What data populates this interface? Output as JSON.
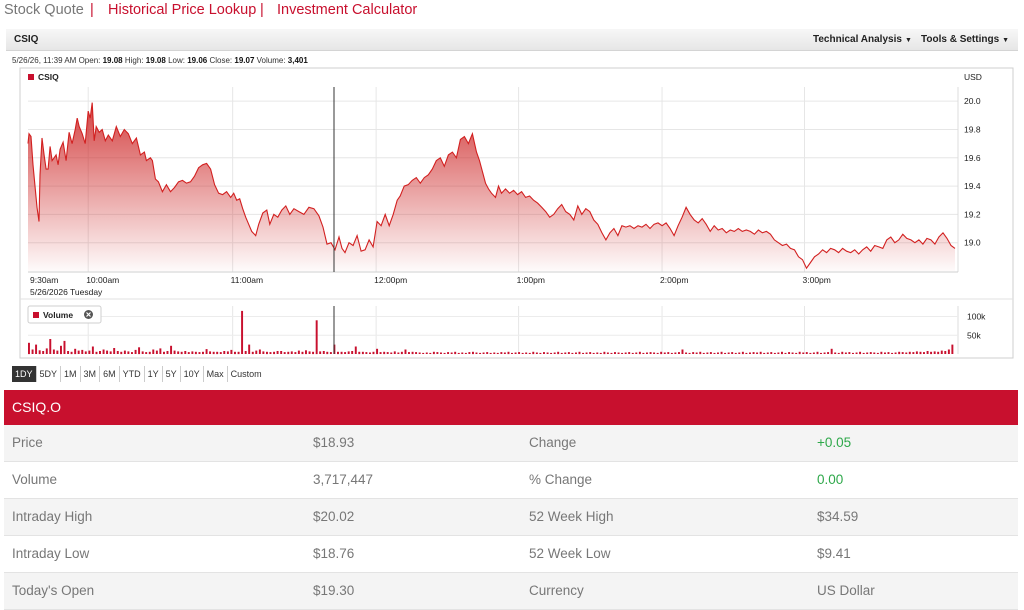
{
  "nav": {
    "stock_quote": "Stock Quote",
    "separator": "|",
    "historical": "Historical Price Lookup",
    "calculator": "Investment Calculator"
  },
  "toolbar": {
    "symbol": "CSIQ",
    "technical_analysis": "Technical Analysis",
    "tools_settings": "Tools & Settings",
    "caret": "▼"
  },
  "info": {
    "datetime": "5/26/26, 11:39 AM",
    "open_label": "Open:",
    "open": "19.08",
    "high_label": "High:",
    "high": "19.08",
    "low_label": "Low:",
    "low": "19.06",
    "close_label": "Close:",
    "close": "19.07",
    "volume_label": "Volume:",
    "volume": "3,401"
  },
  "chart_data": {
    "type": "area",
    "series_name": "CSIQ",
    "currency": "USD",
    "date_label": "5/26/2026 Tuesday",
    "x_labels": [
      "9:30am",
      "10:00am",
      "11:00am",
      "12:00pm",
      "1:00pm",
      "2:00pm",
      "3:00pm"
    ],
    "y_ticks": [
      "20.0",
      "19.8",
      "19.6",
      "19.4",
      "19.2",
      "19.0"
    ],
    "ylim": [
      18.8,
      20.1
    ],
    "price_points": [
      [
        0,
        19.7
      ],
      [
        1,
        19.77
      ],
      [
        3,
        19.75
      ],
      [
        5,
        19.55
      ],
      [
        7,
        19.4
      ],
      [
        9,
        19.25
      ],
      [
        11,
        19.15
      ],
      [
        12,
        19.48
      ],
      [
        14,
        19.74
      ],
      [
        16,
        19.62
      ],
      [
        18,
        19.52
      ],
      [
        20,
        19.52
      ],
      [
        22,
        19.68
      ],
      [
        24,
        19.58
      ],
      [
        26,
        19.6
      ],
      [
        28,
        19.62
      ],
      [
        30,
        19.55
      ],
      [
        32,
        19.66
      ],
      [
        35,
        19.71
      ],
      [
        38,
        19.58
      ],
      [
        41,
        19.78
      ],
      [
        44,
        19.7
      ],
      [
        47,
        19.8
      ],
      [
        49,
        19.88
      ],
      [
        51,
        19.82
      ],
      [
        54,
        19.77
      ],
      [
        57,
        19.7
      ],
      [
        60,
        19.93
      ],
      [
        62,
        19.88
      ],
      [
        64,
        19.99
      ],
      [
        66,
        19.72
      ],
      [
        68,
        19.82
      ],
      [
        71,
        19.78
      ],
      [
        74,
        19.8
      ],
      [
        77,
        19.72
      ],
      [
        80,
        19.76
      ],
      [
        84,
        19.72
      ],
      [
        88,
        19.82
      ],
      [
        92,
        19.75
      ],
      [
        96,
        19.8
      ],
      [
        100,
        19.77
      ],
      [
        104,
        19.7
      ],
      [
        108,
        19.74
      ],
      [
        112,
        19.62
      ],
      [
        116,
        19.64
      ],
      [
        118,
        19.58
      ],
      [
        122,
        19.6
      ],
      [
        124,
        19.58
      ],
      [
        127,
        19.45
      ],
      [
        130,
        19.43
      ],
      [
        134,
        19.36
      ],
      [
        138,
        19.41
      ],
      [
        142,
        19.36
      ],
      [
        146,
        19.39
      ],
      [
        150,
        19.43
      ],
      [
        154,
        19.44
      ],
      [
        158,
        19.42
      ],
      [
        162,
        19.43
      ],
      [
        166,
        19.47
      ],
      [
        170,
        19.53
      ],
      [
        174,
        19.55
      ],
      [
        178,
        19.56
      ],
      [
        182,
        19.52
      ],
      [
        186,
        19.41
      ],
      [
        190,
        19.35
      ],
      [
        194,
        19.34
      ],
      [
        198,
        19.36
      ],
      [
        202,
        19.32
      ],
      [
        205,
        19.35
      ],
      [
        208,
        19.3
      ],
      [
        211,
        19.31
      ],
      [
        214,
        19.24
      ],
      [
        217,
        19.18
      ],
      [
        220,
        19.13
      ],
      [
        223,
        19.08
      ],
      [
        227,
        19.05
      ],
      [
        230,
        19.13
      ],
      [
        234,
        19.21
      ],
      [
        238,
        19.23
      ],
      [
        241,
        19.13
      ],
      [
        245,
        19.2
      ],
      [
        249,
        19.18
      ],
      [
        253,
        19.23
      ],
      [
        257,
        19.26
      ],
      [
        261,
        19.2
      ],
      [
        265,
        19.24
      ],
      [
        270,
        19.22
      ],
      [
        275,
        19.2
      ],
      [
        280,
        19.25
      ],
      [
        285,
        19.24
      ],
      [
        290,
        19.19
      ],
      [
        294,
        19.11
      ],
      [
        298,
        18.99
      ],
      [
        302,
        19.0
      ],
      [
        306,
        18.95
      ],
      [
        310,
        19.04
      ],
      [
        313,
        18.96
      ],
      [
        316,
        18.93
      ],
      [
        320,
        19.0
      ],
      [
        324,
        18.98
      ],
      [
        328,
        19.05
      ],
      [
        332,
        18.94
      ],
      [
        336,
        18.95
      ],
      [
        340,
        19.02
      ],
      [
        344,
        18.97
      ],
      [
        348,
        19.15
      ],
      [
        352,
        19.12
      ],
      [
        356,
        19.2
      ],
      [
        360,
        19.12
      ],
      [
        364,
        19.2
      ],
      [
        368,
        19.3
      ],
      [
        371,
        19.33
      ],
      [
        375,
        19.4
      ],
      [
        379,
        19.41
      ],
      [
        383,
        19.44
      ],
      [
        387,
        19.46
      ],
      [
        391,
        19.42
      ],
      [
        395,
        19.46
      ],
      [
        399,
        19.48
      ],
      [
        403,
        19.52
      ],
      [
        407,
        19.58
      ],
      [
        411,
        19.6
      ],
      [
        415,
        19.54
      ],
      [
        419,
        19.62
      ],
      [
        423,
        19.64
      ],
      [
        427,
        19.6
      ],
      [
        431,
        19.73
      ],
      [
        435,
        19.75
      ],
      [
        439,
        19.7
      ],
      [
        443,
        19.77
      ],
      [
        447,
        19.64
      ],
      [
        450,
        19.58
      ],
      [
        453,
        19.5
      ],
      [
        456,
        19.42
      ],
      [
        459,
        19.38
      ],
      [
        462,
        19.35
      ],
      [
        466,
        19.32
      ],
      [
        469,
        19.4
      ],
      [
        472,
        19.35
      ],
      [
        476,
        19.38
      ],
      [
        480,
        19.35
      ],
      [
        484,
        19.37
      ],
      [
        488,
        19.34
      ],
      [
        492,
        19.36
      ],
      [
        496,
        19.32
      ],
      [
        500,
        19.33
      ],
      [
        504,
        19.3
      ],
      [
        508,
        19.28
      ],
      [
        512,
        19.25
      ],
      [
        516,
        19.22
      ],
      [
        520,
        19.18
      ],
      [
        524,
        19.2
      ],
      [
        528,
        19.24
      ],
      [
        532,
        19.27
      ],
      [
        536,
        19.22
      ],
      [
        540,
        19.2
      ],
      [
        544,
        19.16
      ],
      [
        548,
        19.26
      ],
      [
        552,
        19.2
      ],
      [
        556,
        19.24
      ],
      [
        560,
        19.22
      ],
      [
        564,
        19.16
      ],
      [
        568,
        19.13
      ],
      [
        572,
        19.07
      ],
      [
        576,
        19.02
      ],
      [
        580,
        19.07
      ],
      [
        584,
        19.1
      ],
      [
        588,
        19.05
      ],
      [
        592,
        19.12
      ],
      [
        596,
        19.11
      ],
      [
        600,
        19.12
      ],
      [
        604,
        19.1
      ],
      [
        608,
        19.12
      ],
      [
        612,
        19.11
      ],
      [
        616,
        19.13
      ],
      [
        620,
        19.1
      ],
      [
        624,
        19.13
      ],
      [
        628,
        19.14
      ],
      [
        632,
        19.12
      ],
      [
        636,
        19.14
      ],
      [
        640,
        19.1
      ],
      [
        644,
        19.05
      ],
      [
        648,
        19.12
      ],
      [
        652,
        19.18
      ],
      [
        656,
        19.25
      ],
      [
        660,
        19.2
      ],
      [
        664,
        19.16
      ],
      [
        668,
        19.14
      ],
      [
        672,
        19.17
      ],
      [
        676,
        19.13
      ],
      [
        680,
        19.08
      ],
      [
        684,
        19.12
      ],
      [
        688,
        19.09
      ],
      [
        692,
        19.1
      ],
      [
        696,
        19.07
      ],
      [
        700,
        19.09
      ],
      [
        704,
        19.08
      ],
      [
        708,
        19.1
      ],
      [
        712,
        19.08
      ],
      [
        716,
        19.09
      ],
      [
        720,
        19.08
      ],
      [
        724,
        19.06
      ],
      [
        728,
        19.09
      ],
      [
        732,
        19.07
      ],
      [
        736,
        19.08
      ],
      [
        740,
        19.06
      ],
      [
        744,
        19.02
      ],
      [
        748,
        19.0
      ],
      [
        752,
        18.98
      ],
      [
        756,
        18.99
      ],
      [
        760,
        18.96
      ],
      [
        764,
        18.95
      ],
      [
        768,
        18.9
      ],
      [
        772,
        18.88
      ],
      [
        776,
        18.82
      ],
      [
        780,
        18.86
      ],
      [
        784,
        18.9
      ],
      [
        788,
        18.92
      ],
      [
        792,
        18.95
      ],
      [
        796,
        18.93
      ],
      [
        800,
        18.96
      ],
      [
        804,
        18.95
      ],
      [
        808,
        18.93
      ],
      [
        812,
        18.96
      ],
      [
        816,
        18.94
      ],
      [
        820,
        18.93
      ],
      [
        824,
        18.95
      ],
      [
        828,
        18.92
      ],
      [
        832,
        18.95
      ],
      [
        836,
        18.97
      ],
      [
        840,
        18.94
      ],
      [
        844,
        18.98
      ],
      [
        848,
        18.97
      ],
      [
        852,
        18.96
      ],
      [
        856,
        19.02
      ],
      [
        860,
        19.04
      ],
      [
        864,
        19.0
      ],
      [
        868,
        19.02
      ],
      [
        872,
        19.06
      ],
      [
        876,
        19.03
      ],
      [
        880,
        19.02
      ],
      [
        884,
        19.0
      ],
      [
        888,
        19.02
      ],
      [
        892,
        18.99
      ],
      [
        896,
        19.03
      ],
      [
        900,
        19.02
      ],
      [
        904,
        18.99
      ],
      [
        908,
        19.04
      ],
      [
        912,
        19.07
      ],
      [
        916,
        19.03
      ],
      [
        920,
        18.98
      ],
      [
        924,
        18.96
      ]
    ],
    "volume_label": "Volume",
    "volume_ticks": [
      "100k",
      "50k"
    ],
    "volume_max": 120000,
    "volume_values": [
      30000,
      12000,
      25000,
      10000,
      8000,
      15000,
      40000,
      12000,
      9000,
      22000,
      35000,
      8000,
      6000,
      14000,
      9000,
      11000,
      7000,
      9000,
      20000,
      6000,
      8000,
      12000,
      9000,
      7000,
      16000,
      8000,
      6000,
      9000,
      7000,
      5000,
      11000,
      18000,
      7000,
      5000,
      6000,
      12000,
      9000,
      15000,
      6000,
      8000,
      22000,
      9000,
      7000,
      6000,
      8000,
      5000,
      7000,
      6000,
      5000,
      6000,
      13000,
      7000,
      6000,
      6000,
      5000,
      8000,
      7000,
      11000,
      6000,
      6000,
      115000,
      8000,
      25000,
      6000,
      9000,
      12000,
      7000,
      6000,
      5000,
      6000,
      8000,
      8000,
      5000,
      6000,
      7000,
      5000,
      9000,
      6000,
      10000,
      7000,
      6000,
      90000,
      7000,
      8000,
      6000,
      5000,
      25000,
      6000,
      6000,
      5000,
      7000,
      8000,
      20000,
      6000,
      6000,
      5000,
      4000,
      6000,
      14000,
      5000,
      6000,
      5000,
      4000,
      7000,
      4000,
      6000,
      12000,
      5000,
      6000,
      5000,
      4000,
      3000,
      4000,
      3000,
      6000,
      5000,
      4000,
      3000,
      5000,
      4000,
      6000,
      3000,
      4000,
      3000,
      5000,
      6000,
      4000,
      3000,
      4000,
      5000,
      3000,
      4000,
      3000,
      5000,
      4000,
      6000,
      3000,
      4000,
      5000,
      3000,
      4000,
      3000,
      6000,
      4000,
      3000,
      5000,
      4000,
      3000,
      4000,
      6000,
      3000,
      4000,
      5000,
      3000,
      4000,
      6000,
      3000,
      4000,
      5000,
      3000,
      4000,
      3000,
      6000,
      4000,
      3000,
      5000,
      4000,
      3000,
      4000,
      5000,
      3000,
      4000,
      6000,
      3000,
      4000,
      5000,
      4000,
      3000,
      6000,
      4000,
      5000,
      3000,
      4000,
      5000,
      12000,
      4000,
      3000,
      5000,
      4000,
      6000,
      3000,
      4000,
      5000,
      3000,
      4000,
      6000,
      3000,
      4000,
      5000,
      3000,
      4000,
      6000,
      3000,
      4000,
      5000,
      4000,
      6000,
      3000,
      4000,
      5000,
      3000,
      4000,
      6000,
      3000,
      5000,
      4000,
      3000,
      6000,
      4000,
      5000,
      3000,
      4000,
      6000,
      3000,
      4000,
      5000,
      14000,
      4000,
      3000,
      6000,
      4000,
      5000,
      3000,
      4000,
      6000,
      3000,
      4000,
      5000,
      4000,
      3000,
      6000,
      4000,
      5000,
      3000,
      4000,
      6000,
      5000,
      4000,
      6000,
      5000,
      7000,
      6000,
      5000,
      8000,
      6000,
      7000,
      6000,
      9000,
      8000,
      12000,
      25000
    ]
  },
  "ranges": [
    "1DY",
    "5DY",
    "1M",
    "3M",
    "6M",
    "YTD",
    "1Y",
    "5Y",
    "10Y",
    "Max",
    "Custom"
  ],
  "active_range": "1DY",
  "quote": {
    "symbol": "CSIQ.O",
    "rows": [
      {
        "l1": "Price",
        "v1": "$18.93",
        "l2": "Change",
        "v2": "+0.05"
      },
      {
        "l1": "Volume",
        "v1": "3,717,447",
        "l2": "% Change",
        "v2": "0.00"
      },
      {
        "l1": "Intraday High",
        "v1": "$20.02",
        "l2": "52 Week High",
        "v2": "$34.59"
      },
      {
        "l1": "Intraday Low",
        "v1": "$18.76",
        "l2": "52 Week Low",
        "v2": "$9.41"
      },
      {
        "l1": "Today's Open",
        "v1": "$19.30",
        "l2": "Currency",
        "v2": "US Dollar"
      }
    ]
  },
  "colors": {
    "accent": "#c8102e",
    "line": "#d22020",
    "positive": "#2ea84a",
    "header_bg": "#c8102e"
  }
}
